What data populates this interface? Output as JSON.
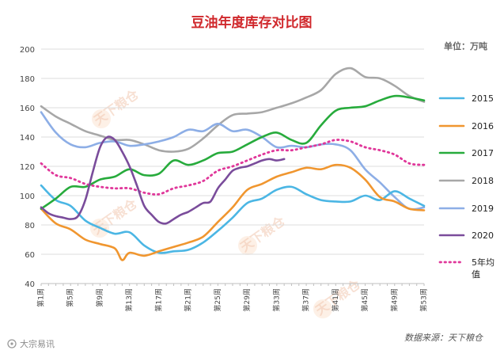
{
  "chart_data": {
    "type": "line",
    "title": "豆油年度库存对比图",
    "unit_label": "单位：万吨",
    "source": "数据来源：天下粮仓",
    "watermark": "天下粮仓",
    "brand": "大宗易讯",
    "ylim": [
      40,
      200
    ],
    "yticks": [
      40,
      60,
      80,
      100,
      120,
      140,
      160,
      180,
      200
    ],
    "xlim": [
      1,
      53
    ],
    "xtick_weeks": [
      1,
      5,
      9,
      13,
      17,
      21,
      25,
      29,
      33,
      37,
      41,
      45,
      49,
      53
    ],
    "xtick_labels": [
      "第1周",
      "第5周",
      "第9周",
      "第13周",
      "第17周",
      "第21周",
      "第25周",
      "第29周",
      "第33周",
      "第37周",
      "第41周",
      "第45周",
      "第49周",
      "第53周"
    ],
    "grid": "horizontal",
    "legend_position": "right",
    "series": [
      {
        "name": "2015",
        "color": "#4bb6e4",
        "dash": false,
        "width": 2.6,
        "x": [
          1,
          3,
          5,
          7,
          9,
          11,
          13,
          15,
          17,
          19,
          21,
          23,
          25,
          27,
          29,
          31,
          33,
          35,
          37,
          39,
          41,
          43,
          45,
          47,
          49,
          51,
          53
        ],
        "y": [
          107,
          97,
          93,
          83,
          78,
          74,
          75,
          66,
          61,
          62,
          63,
          68,
          76,
          85,
          95,
          98,
          104,
          106,
          101,
          97,
          96,
          96,
          100,
          97,
          103,
          98,
          93
        ]
      },
      {
        "name": "2016",
        "color": "#f0962f",
        "dash": false,
        "width": 2.6,
        "x": [
          1,
          3,
          5,
          7,
          9,
          11,
          12,
          13,
          15,
          17,
          19,
          21,
          23,
          25,
          27,
          29,
          31,
          33,
          35,
          37,
          39,
          41,
          43,
          45,
          47,
          49,
          51,
          53
        ],
        "y": [
          91,
          81,
          77,
          70,
          67,
          64,
          56,
          61,
          59,
          62,
          65,
          68,
          72,
          82,
          92,
          104,
          108,
          113,
          116,
          119,
          118,
          121,
          119,
          111,
          99,
          96,
          91,
          90
        ]
      },
      {
        "name": "2017",
        "color": "#27ab3c",
        "dash": false,
        "width": 2.6,
        "x": [
          1,
          3,
          5,
          7,
          9,
          11,
          13,
          15,
          17,
          19,
          21,
          23,
          25,
          27,
          29,
          31,
          33,
          35,
          37,
          39,
          41,
          43,
          45,
          47,
          49,
          51,
          53
        ],
        "y": [
          91,
          98,
          106,
          106,
          111,
          113,
          118,
          114,
          115,
          124,
          121,
          124,
          129,
          130,
          135,
          140,
          143,
          138,
          136,
          148,
          158,
          160,
          161,
          165,
          168,
          167,
          165
        ]
      },
      {
        "name": "2018",
        "color": "#a7a7a7",
        "dash": false,
        "width": 2.6,
        "x": [
          1,
          3,
          5,
          7,
          9,
          11,
          13,
          15,
          17,
          19,
          21,
          23,
          25,
          27,
          29,
          31,
          33,
          35,
          37,
          39,
          41,
          43,
          45,
          47,
          49,
          51,
          53
        ],
        "y": [
          161,
          154,
          149,
          144,
          141,
          138,
          138,
          135,
          131,
          130,
          132,
          139,
          148,
          155,
          156,
          157,
          160,
          163,
          167,
          172,
          183,
          187,
          181,
          180,
          175,
          168,
          164
        ]
      },
      {
        "name": "2019",
        "color": "#8daee6",
        "dash": false,
        "width": 2.6,
        "x": [
          1,
          3,
          5,
          7,
          9,
          11,
          13,
          15,
          17,
          19,
          21,
          23,
          25,
          27,
          29,
          31,
          33,
          35,
          37,
          39,
          41,
          43,
          45,
          47,
          49,
          51,
          53
        ],
        "y": [
          157,
          143,
          135,
          133,
          136,
          137,
          134,
          135,
          137,
          140,
          145,
          144,
          149,
          144,
          145,
          140,
          133,
          134,
          133,
          135,
          135,
          131,
          118,
          109,
          99,
          91,
          92
        ]
      },
      {
        "name": "2020",
        "color": "#7a4c9b",
        "dash": false,
        "width": 2.6,
        "x": [
          1,
          2,
          3,
          4,
          5,
          6,
          7,
          8,
          9,
          10,
          11,
          12,
          13,
          14,
          15,
          16,
          17,
          18,
          19,
          20,
          21,
          22,
          23,
          24,
          25,
          26,
          27,
          28,
          29,
          30,
          31,
          32,
          33,
          34
        ],
        "y": [
          92,
          88,
          86,
          85,
          84,
          86,
          97,
          116,
          133,
          140,
          138,
          130,
          120,
          107,
          93,
          87,
          82,
          81,
          84,
          87,
          89,
          92,
          95,
          96,
          105,
          111,
          117,
          119,
          120,
          122,
          124,
          125,
          124,
          125
        ]
      },
      {
        "name": "5年均值",
        "color": "#e0379a",
        "dash": true,
        "width": 2.4,
        "x": [
          1,
          3,
          5,
          7,
          9,
          11,
          13,
          15,
          17,
          19,
          21,
          23,
          25,
          27,
          29,
          31,
          33,
          35,
          37,
          39,
          41,
          43,
          45,
          47,
          49,
          51,
          53
        ],
        "y": [
          122,
          114,
          112,
          108,
          106,
          105,
          105,
          102,
          101,
          105,
          107,
          110,
          117,
          120,
          124,
          128,
          131,
          131,
          133,
          135,
          138,
          137,
          133,
          131,
          128,
          122,
          121
        ]
      }
    ]
  }
}
